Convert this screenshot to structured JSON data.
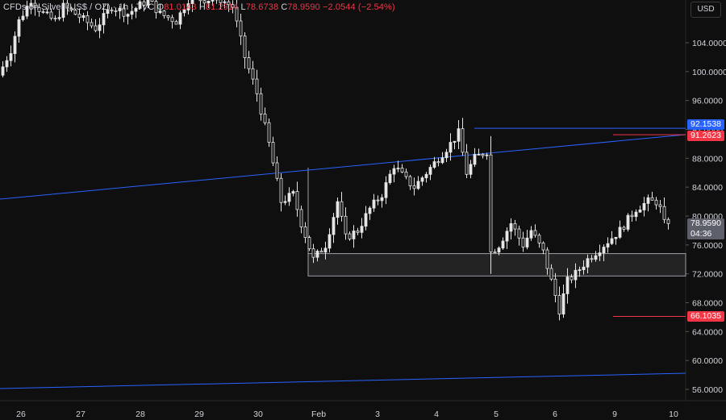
{
  "legend": {
    "symbol": "CFDs on Silver (US$ / OZ) · 1h · TVC",
    "open_label": "O",
    "open": "81.0143",
    "high_label": "H",
    "high": "81.2914",
    "low_label": "L",
    "low": "78.6738",
    "close_label": "C",
    "close": "78.9590",
    "change": "−2.0544 (−2.54%)"
  },
  "currency_button": "USD",
  "colors": {
    "background": "#0f0f0f",
    "candle": "#e6e6e6",
    "trendline": "#2962ff",
    "resistance_line": "#2962ff",
    "support_level": "#f23645",
    "zone_border": "#9aa0a6"
  },
  "chart_data": {
    "type": "candlestick",
    "timeframe": "1h",
    "title": "CFDs on Silver (US$ / OZ)",
    "y_axis": {
      "ylim": [
        54.0,
        110.0
      ],
      "ticks": [
        "104.0000",
        "100.0000",
        "96.0000",
        "92.0000",
        "88.0000",
        "84.0000",
        "80.0000",
        "76.0000",
        "72.0000",
        "68.0000",
        "64.0000",
        "60.0000",
        "56.0000"
      ]
    },
    "x_axis": {
      "ticks": [
        "26",
        "27",
        "28",
        "29",
        "30",
        "Feb",
        "3",
        "4",
        "5",
        "6",
        "9",
        "10"
      ]
    },
    "price_tags": {
      "resistance": "92.1538",
      "level_high": "91.2623",
      "current": "78.9590",
      "countdown": "04:36",
      "level_low": "66.1035"
    },
    "levels": {
      "resistance": 92.1538,
      "level_high": 91.2623,
      "level_low": 66.1035
    },
    "zone": {
      "top": 74.8,
      "bottom": 71.7
    },
    "anchors": [
      {
        "t": 0,
        "p": 99.5
      },
      {
        "t": 3,
        "p": 103
      },
      {
        "t": 5,
        "p": 107
      },
      {
        "t": 8,
        "p": 110
      },
      {
        "t": 11,
        "p": 108
      },
      {
        "t": 14,
        "p": 107
      },
      {
        "t": 16,
        "p": 109
      },
      {
        "t": 19,
        "p": 108
      },
      {
        "t": 24,
        "p": 106
      },
      {
        "t": 28,
        "p": 109
      },
      {
        "t": 32,
        "p": 108
      },
      {
        "t": 37,
        "p": 110
      },
      {
        "t": 40,
        "p": 108
      },
      {
        "t": 44,
        "p": 107
      },
      {
        "t": 47,
        "p": 110
      },
      {
        "t": 55,
        "p": 110
      },
      {
        "t": 58,
        "p": 109
      },
      {
        "t": 61,
        "p": 102
      },
      {
        "t": 64,
        "p": 97
      },
      {
        "t": 67,
        "p": 90
      },
      {
        "t": 70,
        "p": 82
      },
      {
        "t": 73,
        "p": 83
      },
      {
        "t": 75,
        "p": 79
      },
      {
        "t": 78,
        "p": 74
      },
      {
        "t": 81,
        "p": 76
      },
      {
        "t": 84,
        "p": 82
      },
      {
        "t": 86,
        "p": 77
      },
      {
        "t": 89,
        "p": 78
      },
      {
        "t": 92,
        "p": 81
      },
      {
        "t": 95,
        "p": 83
      },
      {
        "t": 98,
        "p": 87
      },
      {
        "t": 101,
        "p": 85
      },
      {
        "t": 103,
        "p": 84
      },
      {
        "t": 106,
        "p": 86
      },
      {
        "t": 109,
        "p": 88
      },
      {
        "t": 112,
        "p": 90
      },
      {
        "t": 114,
        "p": 91.5
      },
      {
        "t": 116,
        "p": 86
      },
      {
        "t": 118,
        "p": 88
      },
      {
        "t": 121,
        "p": 89
      },
      {
        "t": 122,
        "p": 75
      },
      {
        "t": 124,
        "p": 76
      },
      {
        "t": 127,
        "p": 79
      },
      {
        "t": 130,
        "p": 76
      },
      {
        "t": 132,
        "p": 78
      },
      {
        "t": 135,
        "p": 75
      },
      {
        "t": 137,
        "p": 71
      },
      {
        "t": 139,
        "p": 67
      },
      {
        "t": 141,
        "p": 71
      },
      {
        "t": 143,
        "p": 72
      },
      {
        "t": 146,
        "p": 74
      },
      {
        "t": 150,
        "p": 76
      },
      {
        "t": 154,
        "p": 78
      },
      {
        "t": 158,
        "p": 81
      },
      {
        "t": 161,
        "p": 82
      },
      {
        "t": 163,
        "p": 82
      },
      {
        "t": 164,
        "p": 81
      },
      {
        "t": 165,
        "p": 78.96
      }
    ]
  }
}
